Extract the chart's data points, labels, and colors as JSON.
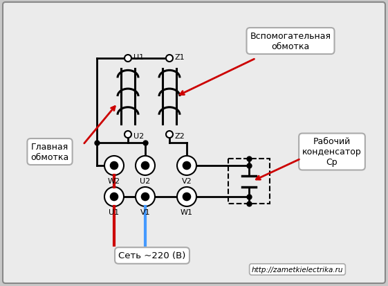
{
  "bg_color": "#c8c8c8",
  "panel_bg": "#f0f0f0",
  "label_glavnaya": "Главная\nобмотка",
  "label_vspomog": "Вспомогательная\nобмотка",
  "label_rabochiy": "Рабочий\nконденсатор\nСр",
  "label_set": "Сеть ~220 (В)",
  "label_url": "http://zametkielectrika.ru",
  "line_color": "#000000",
  "red_wire": "#cc0000",
  "blue_wire": "#4499ff",
  "arrow_color": "#cc0000",
  "box_fill": "#ffffff",
  "box_edge": "#aaaaaa"
}
